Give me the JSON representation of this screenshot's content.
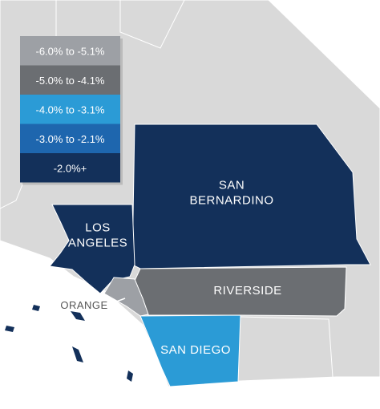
{
  "legend": {
    "items": [
      {
        "label": "-6.0% to -5.1%",
        "color": "#9da0a5"
      },
      {
        "label": "-5.0% to -4.1%",
        "color": "#6b6e72"
      },
      {
        "label": "-4.0% to -3.1%",
        "color": "#2b9bd6"
      },
      {
        "label": "-3.0% to -2.1%",
        "color": "#1e66ae"
      },
      {
        "label": "-2.0%+",
        "color": "#13305a"
      }
    ]
  },
  "counties": [
    {
      "name": [
        "SAN",
        "BERNARDINO"
      ],
      "color": "#13305a"
    },
    {
      "name": [
        "LOS",
        "ANGELES"
      ],
      "color": "#13305a"
    },
    {
      "name": [
        "RIVERSIDE"
      ],
      "color": "#6b6e72"
    },
    {
      "name": [
        "ORANGE"
      ],
      "color": "#9da0a5"
    },
    {
      "name": [
        "SAN DIEGO"
      ],
      "color": "#2b9bd6"
    }
  ]
}
